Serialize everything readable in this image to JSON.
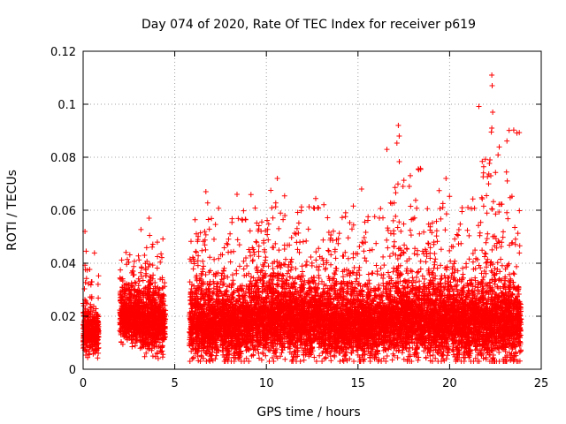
{
  "chart_data": {
    "type": "scatter",
    "title": "Day 074 of 2020, Rate Of TEC Index for receiver p619",
    "xlabel": "GPS time / hours",
    "ylabel": "ROTI / TECUs",
    "xlim": [
      0,
      25
    ],
    "ylim": [
      0,
      0.12
    ],
    "xticks": [
      0,
      5,
      10,
      15,
      20,
      25
    ],
    "yticks": [
      0,
      0.02,
      0.04,
      0.06,
      0.08,
      0.1,
      0.12
    ],
    "xtick_labels": [
      "0",
      "5",
      "10",
      "15",
      "20",
      "25"
    ],
    "ytick_labels": [
      "0",
      "0.02",
      "0.04",
      "0.06",
      "0.08",
      "0.1",
      "0.12"
    ],
    "grid": true,
    "marker": "+",
    "color": "#ff0000",
    "segments": [
      {
        "start": 0.0,
        "end": 0.85,
        "base": 0.014,
        "spread": 0.008,
        "spike": 0.052
      },
      {
        "start": 2.0,
        "end": 3.1,
        "base": 0.02,
        "spread": 0.01,
        "spike": 0.046
      },
      {
        "start": 3.1,
        "end": 4.5,
        "base": 0.018,
        "spread": 0.012,
        "spike": 0.057
      },
      {
        "start": 5.8,
        "end": 9.0,
        "base": 0.017,
        "spread": 0.013,
        "spike": 0.067
      },
      {
        "start": 9.0,
        "end": 13.0,
        "base": 0.019,
        "spread": 0.014,
        "spike": 0.072
      },
      {
        "start": 13.0,
        "end": 16.5,
        "base": 0.017,
        "spread": 0.013,
        "spike": 0.068
      },
      {
        "start": 16.5,
        "end": 18.5,
        "base": 0.019,
        "spread": 0.014,
        "spike": 0.092
      },
      {
        "start": 18.5,
        "end": 21.5,
        "base": 0.018,
        "spread": 0.014,
        "spike": 0.072
      },
      {
        "start": 21.5,
        "end": 23.9,
        "base": 0.018,
        "spread": 0.015,
        "spike": 0.111
      }
    ],
    "peaks": [
      {
        "x": 17.2,
        "y": 0.092
      },
      {
        "x": 17.25,
        "y": 0.088
      },
      {
        "x": 22.3,
        "y": 0.111
      },
      {
        "x": 22.32,
        "y": 0.107
      },
      {
        "x": 22.35,
        "y": 0.097
      },
      {
        "x": 22.3,
        "y": 0.091
      },
      {
        "x": 22.2,
        "y": 0.079
      },
      {
        "x": 22.25,
        "y": 0.073
      },
      {
        "x": 10.6,
        "y": 0.072
      },
      {
        "x": 19.8,
        "y": 0.072
      },
      {
        "x": 6.7,
        "y": 0.067
      },
      {
        "x": 8.4,
        "y": 0.066
      },
      {
        "x": 15.2,
        "y": 0.068
      },
      {
        "x": 17.8,
        "y": 0.069
      },
      {
        "x": 0.1,
        "y": 0.052
      },
      {
        "x": 3.6,
        "y": 0.057
      }
    ]
  }
}
